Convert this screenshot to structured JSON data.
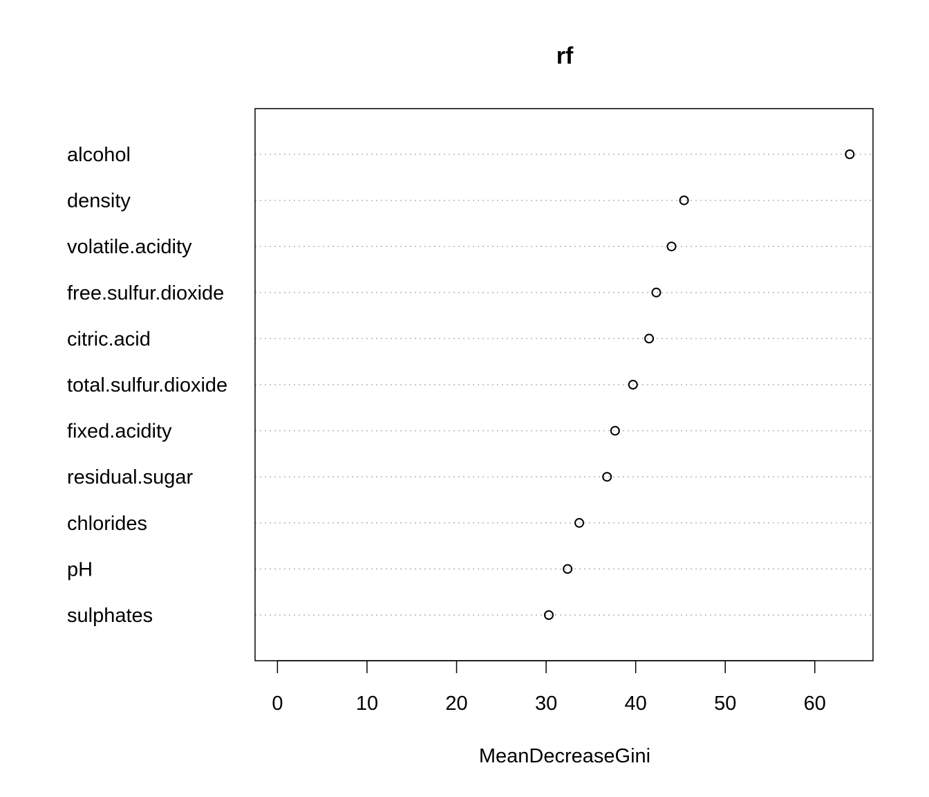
{
  "chart_data": {
    "type": "scatter",
    "subtype": "dotchart",
    "title": "rf",
    "xlabel": "MeanDecreaseGini",
    "ylabel": "",
    "xlim": [
      -2.5,
      66.5
    ],
    "xticks": [
      0,
      10,
      20,
      30,
      40,
      50,
      60
    ],
    "grid": "horizontal-dotted",
    "categories": [
      "alcohol",
      "density",
      "volatile.acidity",
      "free.sulfur.dioxide",
      "citric.acid",
      "total.sulfur.dioxide",
      "fixed.acidity",
      "residual.sugar",
      "chlorides",
      "pH",
      "sulphates"
    ],
    "values": [
      63.9,
      45.4,
      44.0,
      42.3,
      41.5,
      39.7,
      37.7,
      36.8,
      33.7,
      32.4,
      30.3
    ],
    "colors": {
      "point_stroke": "#000000",
      "grid": "#b3b3b3",
      "frame": "#000000"
    }
  }
}
